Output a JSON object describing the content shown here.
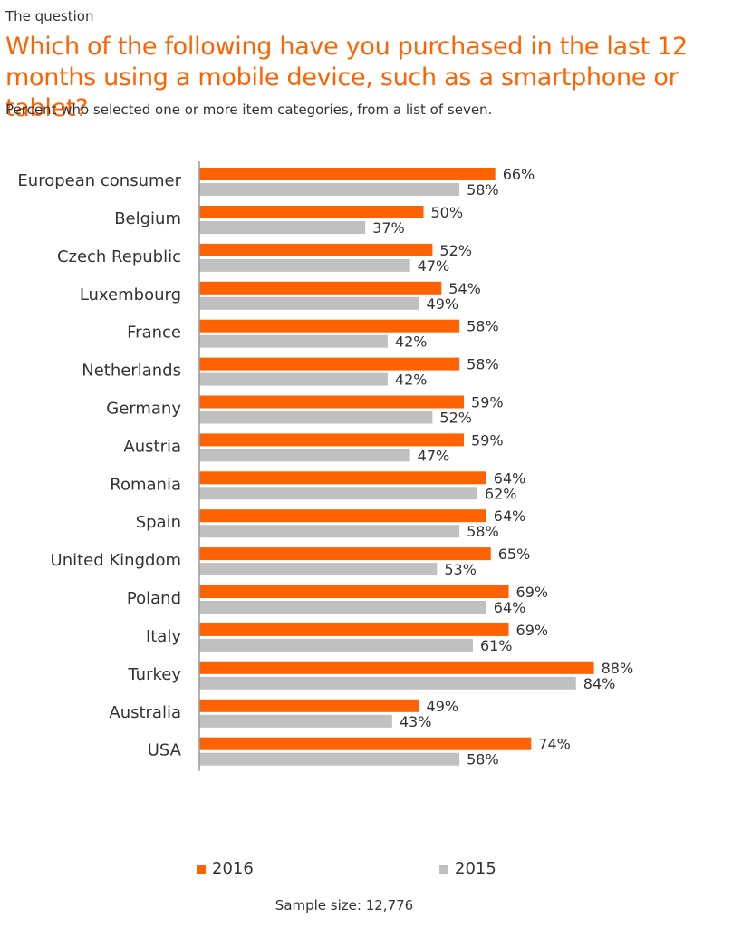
{
  "header": {
    "eyebrow": "The question",
    "title": "Which of the following have you purchased in the last 12 months using a mobile device, such as a smartphone or tablet?",
    "subtitle": "Percent who selected one or more item categories, from a list of seven."
  },
  "footnote": "Sample size: 12,776",
  "colors": {
    "series_2016": "#ff6200",
    "series_2015": "#c0c0c0",
    "axis": "#9a9a9a"
  },
  "chart_data": {
    "type": "bar",
    "orientation": "horizontal",
    "categories": [
      "European consumer",
      "Belgium",
      "Czech Republic",
      "Luxembourg",
      "France",
      "Netherlands",
      "Germany",
      "Austria",
      "Romania",
      "Spain",
      "United Kingdom",
      "Poland",
      "Italy",
      "Turkey",
      "Australia",
      "USA"
    ],
    "groups": [
      [
        "European consumer"
      ],
      [
        "Belgium",
        "Czech Republic",
        "Luxembourg",
        "France",
        "Netherlands",
        "Germany",
        "Austria",
        "Romania",
        "Spain",
        "United Kingdom",
        "Poland",
        "Italy",
        "Turkey"
      ],
      [
        "Australia",
        "USA"
      ]
    ],
    "series": [
      {
        "name": "2016",
        "values": [
          66,
          50,
          52,
          54,
          58,
          58,
          59,
          59,
          64,
          64,
          65,
          69,
          69,
          88,
          49,
          74
        ],
        "labels": [
          "66%",
          "50%",
          "52%",
          "54%",
          "58%",
          "58%",
          "59%",
          "59%",
          "64%",
          "64%",
          "65%",
          "69%",
          "69%",
          "88%",
          "49%",
          "74%"
        ]
      },
      {
        "name": "2015",
        "values": [
          58,
          37,
          47,
          49,
          42,
          42,
          52,
          47,
          62,
          58,
          53,
          64,
          61,
          84,
          43,
          58
        ],
        "labels": [
          "58%",
          "37%",
          "47%",
          "49%",
          "42%",
          "42%",
          "52%",
          "47%",
          "62%",
          "58%",
          "53%",
          "64%",
          "61%",
          "84%",
          "43%",
          "58%"
        ]
      }
    ],
    "xlim": [
      0,
      100
    ],
    "grid": false,
    "legend": "bottom"
  }
}
